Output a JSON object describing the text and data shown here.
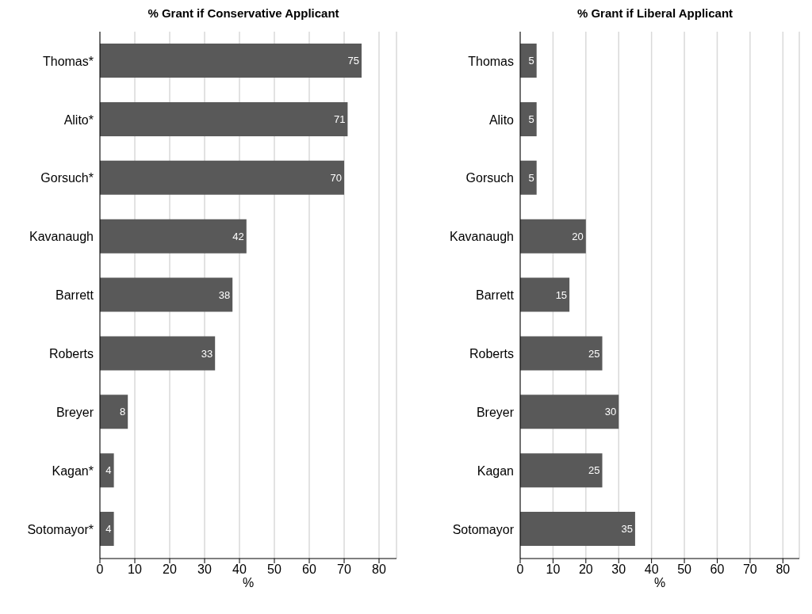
{
  "chart_data": [
    {
      "type": "bar",
      "orientation": "horizontal",
      "title": "% Grant if Conservative Applicant",
      "xlabel": "%",
      "categories": [
        "Thomas*",
        "Alito*",
        "Gorsuch*",
        "Kavanaugh",
        "Barrett",
        "Roberts",
        "Breyer",
        "Kagan*",
        "Sotomayor*"
      ],
      "values": [
        75,
        71,
        70,
        42,
        38,
        33,
        8,
        4,
        4
      ],
      "color": "#595959",
      "xlim": [
        0,
        85
      ],
      "xticks": [
        0,
        10,
        20,
        30,
        40,
        50,
        60,
        70,
        80
      ],
      "grid": "x",
      "data_labels": true
    },
    {
      "type": "bar",
      "orientation": "horizontal",
      "title": "% Grant if Liberal Applicant",
      "xlabel": "%",
      "categories": [
        "Thomas",
        "Alito",
        "Gorsuch",
        "Kavanaugh",
        "Barrett",
        "Roberts",
        "Breyer",
        "Kagan",
        "Sotomayor"
      ],
      "values": [
        5,
        5,
        5,
        20,
        15,
        25,
        30,
        25,
        35
      ],
      "color": "#595959",
      "xlim": [
        0,
        85
      ],
      "xticks": [
        0,
        10,
        20,
        30,
        40,
        50,
        60,
        70,
        80
      ],
      "grid": "x",
      "data_labels": true
    }
  ]
}
